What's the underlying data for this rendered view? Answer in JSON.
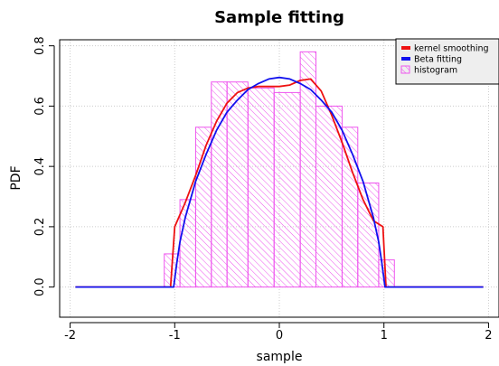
{
  "chart_data": {
    "type": "line",
    "title": "Sample fitting",
    "xlabel": "sample",
    "ylabel": "PDF",
    "xlim": [
      -2.1,
      2.1
    ],
    "ylim": [
      -0.1,
      0.82
    ],
    "xticks": [
      -2,
      -1,
      0,
      1,
      2
    ],
    "yticks": [
      0.0,
      0.2,
      0.4,
      0.6,
      0.8
    ],
    "xtick_labels": [
      "-2",
      "-1",
      "0",
      "1",
      "2"
    ],
    "ytick_labels": [
      "0.0",
      "0.2",
      "0.4",
      "0.6",
      "0.8"
    ],
    "grid": true,
    "legend_position": "top-right",
    "legend": [
      {
        "label": "kernel smoothing",
        "color": "#ee1111",
        "kind": "line"
      },
      {
        "label": "Beta fitting",
        "color": "#1111ee",
        "kind": "line"
      },
      {
        "label": "histogram",
        "color": "#ee55ee",
        "kind": "hatch"
      }
    ],
    "histogram": {
      "color": "#ee55ee",
      "bins": [
        {
          "x0": -1.1,
          "x1": -0.95,
          "height": 0.11
        },
        {
          "x0": -0.95,
          "x1": -0.8,
          "height": 0.29
        },
        {
          "x0": -0.8,
          "x1": -0.65,
          "height": 0.53
        },
        {
          "x0": -0.65,
          "x1": -0.5,
          "height": 0.68
        },
        {
          "x0": -0.5,
          "x1": -0.3,
          "height": 0.68
        },
        {
          "x0": -0.3,
          "x1": -0.05,
          "height": 0.66
        },
        {
          "x0": -0.05,
          "x1": 0.2,
          "height": 0.645
        },
        {
          "x0": 0.2,
          "x1": 0.35,
          "height": 0.78
        },
        {
          "x0": 0.35,
          "x1": 0.6,
          "height": 0.6
        },
        {
          "x0": 0.6,
          "x1": 0.75,
          "height": 0.53
        },
        {
          "x0": 0.75,
          "x1": 0.95,
          "height": 0.345
        },
        {
          "x0": 0.95,
          "x1": 1.1,
          "height": 0.09
        }
      ]
    },
    "series": [
      {
        "name": "kernel smoothing",
        "color": "#ee1111",
        "points": [
          [
            -1.95,
            0.0
          ],
          [
            -1.1,
            0.0
          ],
          [
            -1.04,
            0.0
          ],
          [
            -1.0,
            0.2
          ],
          [
            -0.9,
            0.28
          ],
          [
            -0.8,
            0.37
          ],
          [
            -0.7,
            0.47
          ],
          [
            -0.6,
            0.55
          ],
          [
            -0.5,
            0.61
          ],
          [
            -0.4,
            0.645
          ],
          [
            -0.3,
            0.66
          ],
          [
            -0.2,
            0.665
          ],
          [
            -0.1,
            0.665
          ],
          [
            0.0,
            0.665
          ],
          [
            0.1,
            0.67
          ],
          [
            0.2,
            0.685
          ],
          [
            0.3,
            0.69
          ],
          [
            0.4,
            0.65
          ],
          [
            0.5,
            0.57
          ],
          [
            0.6,
            0.48
          ],
          [
            0.7,
            0.38
          ],
          [
            0.8,
            0.29
          ],
          [
            0.9,
            0.22
          ],
          [
            0.99,
            0.2
          ],
          [
            1.02,
            0.0
          ],
          [
            1.1,
            0.0
          ],
          [
            1.95,
            0.0
          ]
        ]
      },
      {
        "name": "Beta fitting",
        "color": "#1111ee",
        "points": [
          [
            -1.95,
            0.0
          ],
          [
            -1.1,
            0.0
          ],
          [
            -1.01,
            0.0
          ],
          [
            -0.98,
            0.08
          ],
          [
            -0.95,
            0.15
          ],
          [
            -0.9,
            0.23
          ],
          [
            -0.8,
            0.35
          ],
          [
            -0.7,
            0.44
          ],
          [
            -0.6,
            0.52
          ],
          [
            -0.5,
            0.58
          ],
          [
            -0.4,
            0.62
          ],
          [
            -0.3,
            0.655
          ],
          [
            -0.2,
            0.675
          ],
          [
            -0.1,
            0.69
          ],
          [
            0.0,
            0.695
          ],
          [
            0.1,
            0.69
          ],
          [
            0.2,
            0.675
          ],
          [
            0.3,
            0.655
          ],
          [
            0.4,
            0.62
          ],
          [
            0.5,
            0.58
          ],
          [
            0.6,
            0.52
          ],
          [
            0.7,
            0.44
          ],
          [
            0.8,
            0.35
          ],
          [
            0.9,
            0.23
          ],
          [
            0.95,
            0.15
          ],
          [
            0.98,
            0.08
          ],
          [
            1.01,
            0.0
          ],
          [
            1.1,
            0.0
          ],
          [
            1.95,
            0.0
          ]
        ]
      }
    ]
  }
}
